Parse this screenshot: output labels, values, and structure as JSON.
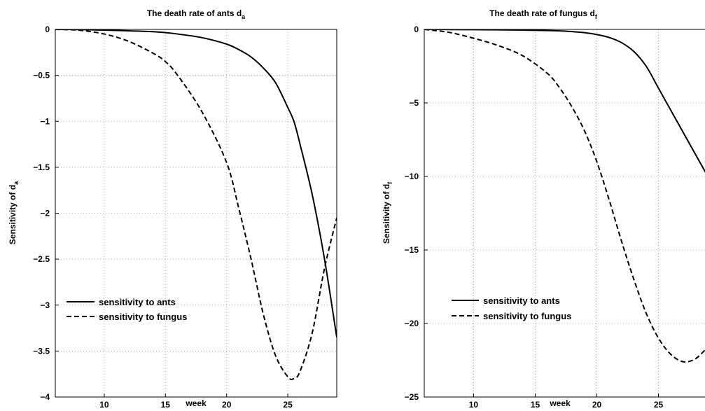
{
  "chart_data": [
    {
      "type": "line",
      "title": "The death rate of ants d",
      "title_subscript": "a",
      "xlabel": "week",
      "ylabel": "Sensitivity of d",
      "ylabel_subscript": "a",
      "xlim": [
        6,
        29
      ],
      "ylim": [
        -4,
        0
      ],
      "xticks": [
        10,
        15,
        20,
        25
      ],
      "yticks": [
        0,
        -0.5,
        -1,
        -1.5,
        -2,
        -2.5,
        -3,
        -3.5,
        -4
      ],
      "grid": true,
      "legend_position": "bottom-left",
      "x": [
        6,
        8,
        10,
        12,
        14,
        15,
        16,
        18,
        20,
        21,
        22,
        23,
        24,
        25,
        25.5,
        26,
        27,
        28,
        29
      ],
      "series": [
        {
          "name": "sensitivity to ants",
          "style": "solid",
          "values": [
            0,
            -0.002,
            -0.008,
            -0.015,
            -0.025,
            -0.035,
            -0.05,
            -0.09,
            -0.16,
            -0.22,
            -0.3,
            -0.42,
            -0.58,
            -0.85,
            -1.0,
            -1.25,
            -1.8,
            -2.5,
            -3.35
          ]
        },
        {
          "name": "sensitivity to fungus",
          "style": "dashed",
          "values": [
            0,
            -0.01,
            -0.05,
            -0.13,
            -0.26,
            -0.35,
            -0.5,
            -0.9,
            -1.45,
            -1.95,
            -2.5,
            -3.1,
            -3.55,
            -3.78,
            -3.8,
            -3.72,
            -3.3,
            -2.6,
            -2.05
          ]
        }
      ]
    },
    {
      "type": "line",
      "title": "The death rate of fungus d",
      "title_subscript": "f",
      "xlabel": "week",
      "ylabel": "Sensitivity of d",
      "ylabel_subscript": "f",
      "xlim": [
        6,
        29
      ],
      "ylim": [
        -25,
        0
      ],
      "xticks": [
        10,
        15,
        20,
        25
      ],
      "yticks": [
        0,
        -5,
        -10,
        -15,
        -20,
        -25
      ],
      "grid": true,
      "legend_position": "bottom-left",
      "x": [
        6,
        8,
        10,
        12,
        14,
        16,
        17,
        18,
        19,
        20,
        21,
        22,
        23,
        24,
        25,
        26,
        27,
        28,
        29
      ],
      "series": [
        {
          "name": "sensitivity to ants",
          "style": "solid",
          "values": [
            0,
            -0.01,
            -0.02,
            -0.03,
            -0.05,
            -0.08,
            -0.1,
            -0.15,
            -0.22,
            -0.35,
            -0.55,
            -0.9,
            -1.5,
            -2.5,
            -4.0,
            -5.5,
            -7.0,
            -8.5,
            -10.0
          ]
        },
        {
          "name": "sensitivity to fungus",
          "style": "dashed",
          "values": [
            0,
            -0.2,
            -0.6,
            -1.1,
            -1.8,
            -3.0,
            -4.0,
            -5.3,
            -6.9,
            -9.0,
            -11.6,
            -14.4,
            -17.0,
            -19.3,
            -21.0,
            -22.1,
            -22.6,
            -22.4,
            -21.6
          ]
        }
      ]
    }
  ]
}
